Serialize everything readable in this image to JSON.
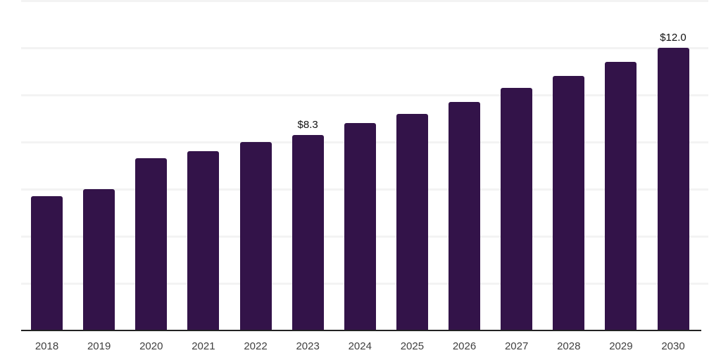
{
  "chart_data": {
    "type": "bar",
    "title": "",
    "categories": [
      "2018",
      "2019",
      "2020",
      "2021",
      "2022",
      "2023",
      "2024",
      "2025",
      "2026",
      "2027",
      "2028",
      "2029",
      "2030"
    ],
    "values": [
      5.7,
      6.0,
      7.3,
      7.6,
      8.0,
      8.3,
      8.8,
      9.2,
      9.7,
      10.3,
      10.8,
      11.4,
      12.0
    ],
    "annotations": [
      {
        "category": "2023",
        "label": "$8.3"
      },
      {
        "category": "2030",
        "label": "$12.0"
      }
    ],
    "xlabel": "",
    "ylabel": "",
    "ylim": [
      0,
      14
    ],
    "grid": true,
    "grid_step": 2,
    "y_tick_labels_shown": false,
    "legend": "none",
    "colors": {
      "bar": "#331349",
      "gridline": "#f3f3f3",
      "axis_line": "#222222",
      "x_label_text": "#404040",
      "annotation_text": "#111111",
      "background": "#ffffff"
    }
  }
}
